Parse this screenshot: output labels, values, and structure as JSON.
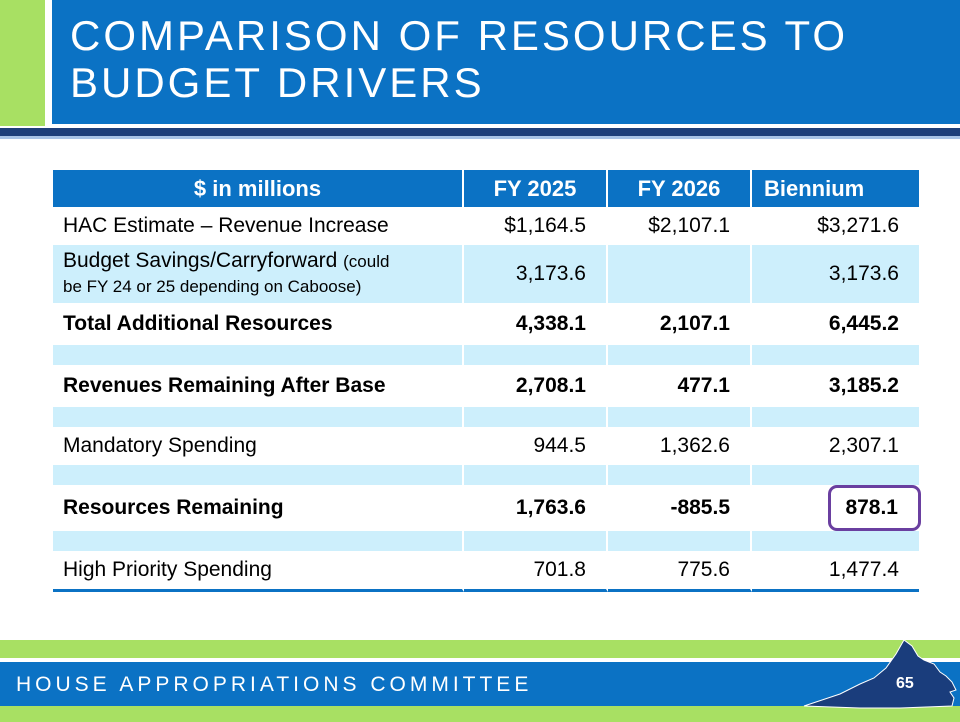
{
  "header": {
    "title_line1": "COMPARISON OF RESOURCES TO",
    "title_line2": "BUDGET DRIVERS"
  },
  "table": {
    "columns": [
      "$ in millions",
      "FY 2025",
      "FY 2026",
      "Biennium"
    ],
    "rows": [
      {
        "label": "HAC Estimate – Revenue Increase",
        "fy2025": "$1,164.5",
        "fy2026": "$2,107.1",
        "biennium": "$3,271.6"
      },
      {
        "label": "Budget Savings/Carryforward",
        "note_part1": "(could",
        "note_part2": "be FY 24 or 25 depending on Caboose)",
        "fy2025": "3,173.6",
        "fy2026": "",
        "biennium": "3,173.6"
      },
      {
        "label": "Total Additional Resources",
        "fy2025": "4,338.1",
        "fy2026": "2,107.1",
        "biennium": "6,445.2"
      },
      {
        "label": "Revenues Remaining After Base",
        "fy2025": "2,708.1",
        "fy2026": "477.1",
        "biennium": "3,185.2"
      },
      {
        "label": "Mandatory Spending",
        "fy2025": "944.5",
        "fy2026": "1,362.6",
        "biennium": "2,307.1"
      },
      {
        "label": "Resources Remaining",
        "fy2025": "1,763.6",
        "fy2026": "-885.5",
        "biennium": "878.1"
      },
      {
        "label": "High Priority Spending",
        "fy2025": "701.8",
        "fy2026": "775.6",
        "biennium": "1,477.4"
      }
    ]
  },
  "footer": {
    "committee": "HOUSE APPROPRIATIONS COMMITTEE",
    "page_number": "65",
    "map_icon": "virginia-state-map-icon"
  },
  "colors": {
    "primary_blue": "#0b72c4",
    "accent_green": "#a8e063",
    "navy_rule": "#1f3f7a",
    "row_light_blue": "#cdeffc",
    "highlight_purple": "#6a3fa0",
    "map_navy": "#1a3d7c"
  }
}
